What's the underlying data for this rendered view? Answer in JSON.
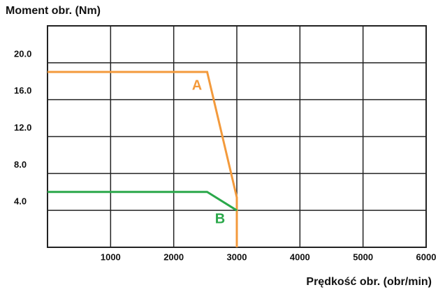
{
  "chart_data": {
    "type": "line",
    "y_label": "Moment obr. (Nm)",
    "x_label": "Prędkość obr. (obr/min)",
    "xlim": [
      0,
      6000
    ],
    "ylim": [
      0,
      24
    ],
    "xticks": [
      1000,
      2000,
      3000,
      4000,
      5000,
      6000
    ],
    "yticks": [
      {
        "value": 4,
        "label": "4.0"
      },
      {
        "value": 8,
        "label": "8.0"
      },
      {
        "value": 12,
        "label": "12.0"
      },
      {
        "value": 16,
        "label": "16.0"
      },
      {
        "value": 20,
        "label": "20.0"
      }
    ],
    "grid": true,
    "series": [
      {
        "name": "A",
        "color": "#f39a3c",
        "x": [
          0,
          2530,
          3000,
          3000
        ],
        "values": [
          19,
          19,
          5.4,
          0
        ]
      },
      {
        "name": "B",
        "color": "#2aa84a",
        "x": [
          0,
          2530,
          3000
        ],
        "values": [
          6,
          6,
          4
        ]
      }
    ]
  }
}
